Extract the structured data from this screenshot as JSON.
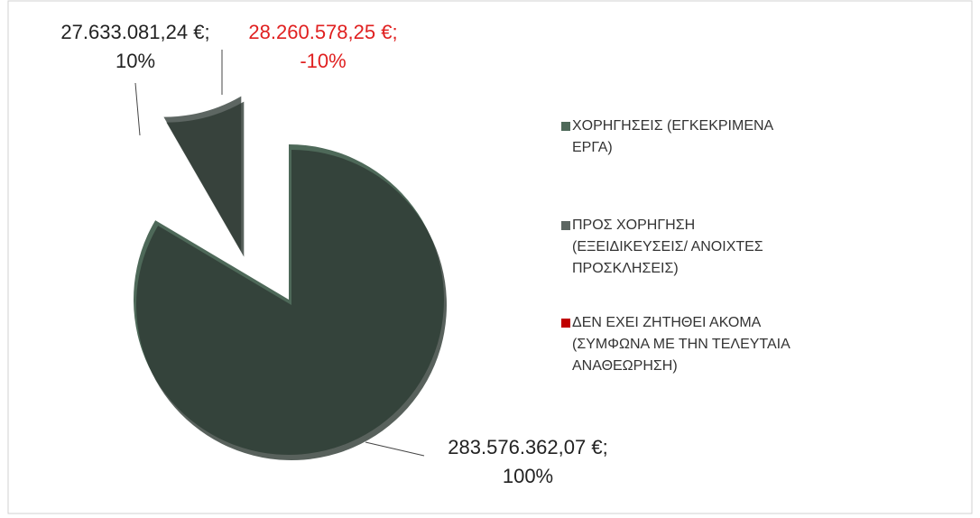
{
  "chart_data": {
    "type": "pie",
    "categories": [
      "ΧΟΡΗΓΗΣΕΙΣ (ΕΓΚΕΚΡΙΜΕΝΑ ΕΡΓΑ)",
      "ΠΡΟΣ ΧΟΡΗΓΗΣΗ (ΕΞΕΙΔΙΚΕΥΣΕΙΣ/ ΑΝΟΙΧΤΕΣ ΠΡΟΣΚΛΗΣΕΙΣ)",
      "ΔΕΝ ΕΧΕΙ ΖΗΤΗΘΕΙ ΑΚΟΜΑ (ΣΥΜΦΩΝΑ ΜΕ ΤΗΝ ΤΕΛΕΥΤΑΙΑ ΑΝΑΘΕΩΡΗΣΗ)"
    ],
    "values": [
      283576362.07,
      27633081.24,
      28260578.25
    ],
    "value_labels": [
      "283.576.362,07 €;\n100%",
      "27.633.081,24 €;\n10%",
      "28.260.578,25 €;\n-10%"
    ],
    "colors": [
      "#4e6959",
      "#5d6662",
      "#c00000"
    ],
    "label_colors": [
      "#222222",
      "#222222",
      "#e02020"
    ],
    "legend": "right"
  }
}
